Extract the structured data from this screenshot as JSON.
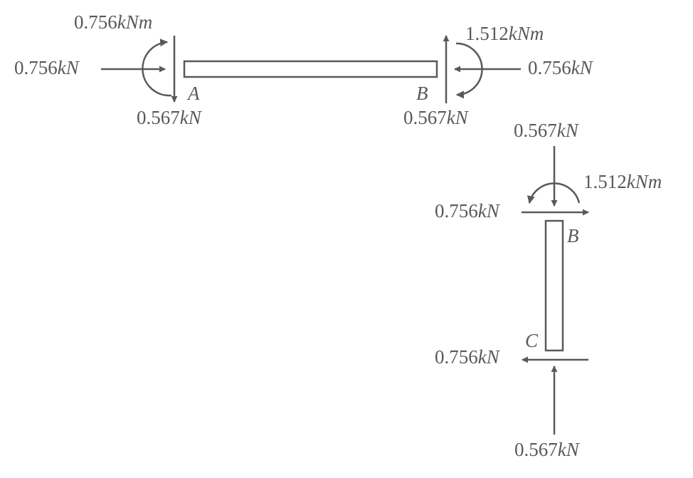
{
  "members": {
    "ab": {
      "left_end": {
        "point": "A",
        "axial": {
          "value": "0.756",
          "unit": "kN"
        },
        "shear": {
          "value": "0.567",
          "unit": "kN"
        },
        "moment": {
          "value": "0.756",
          "unit": "kNm"
        }
      },
      "right_end": {
        "point": "B",
        "axial": {
          "value": "0.756",
          "unit": "kN"
        },
        "shear": {
          "value": "0.567",
          "unit": "kN"
        },
        "moment": {
          "value": "1.512",
          "unit": "kNm"
        }
      }
    },
    "bc": {
      "top_end": {
        "point": "B",
        "vertical": {
          "value": "0.567",
          "unit": "kN"
        },
        "horizontal": {
          "value": "0.756",
          "unit": "kN"
        },
        "moment": {
          "value": "1.512",
          "unit": "kNm"
        }
      },
      "bottom_end": {
        "point": "C",
        "horizontal": {
          "value": "0.756",
          "unit": "kN"
        },
        "vertical": {
          "value": "0.567",
          "unit": "kN"
        }
      }
    }
  },
  "colors": {
    "line": "#595959",
    "text": "#595959"
  }
}
